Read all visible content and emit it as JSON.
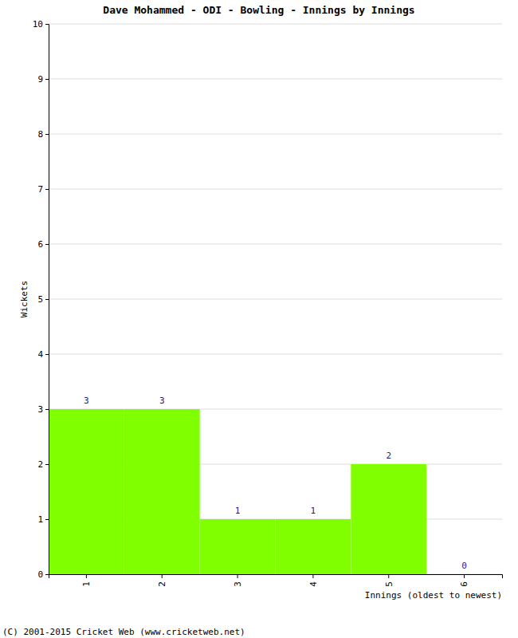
{
  "chart_data": {
    "type": "bar",
    "title": "Dave Mohammed - ODI - Bowling - Innings by Innings",
    "x_label": "Innings (oldest to newest)",
    "y_label": "Wickets",
    "categories": [
      "1",
      "2",
      "3",
      "4",
      "5",
      "6"
    ],
    "values": [
      3,
      3,
      1,
      1,
      2,
      0
    ],
    "color": "#80ff00",
    "ylim": [
      0,
      10
    ],
    "yticks": [
      0,
      1,
      2,
      3,
      4,
      5,
      6,
      7,
      8,
      9,
      10
    ],
    "grid": true,
    "data_labels": true,
    "annotations": [
      "(C) 2001-2015 Cricket Web (www.cricketweb.net)"
    ]
  }
}
